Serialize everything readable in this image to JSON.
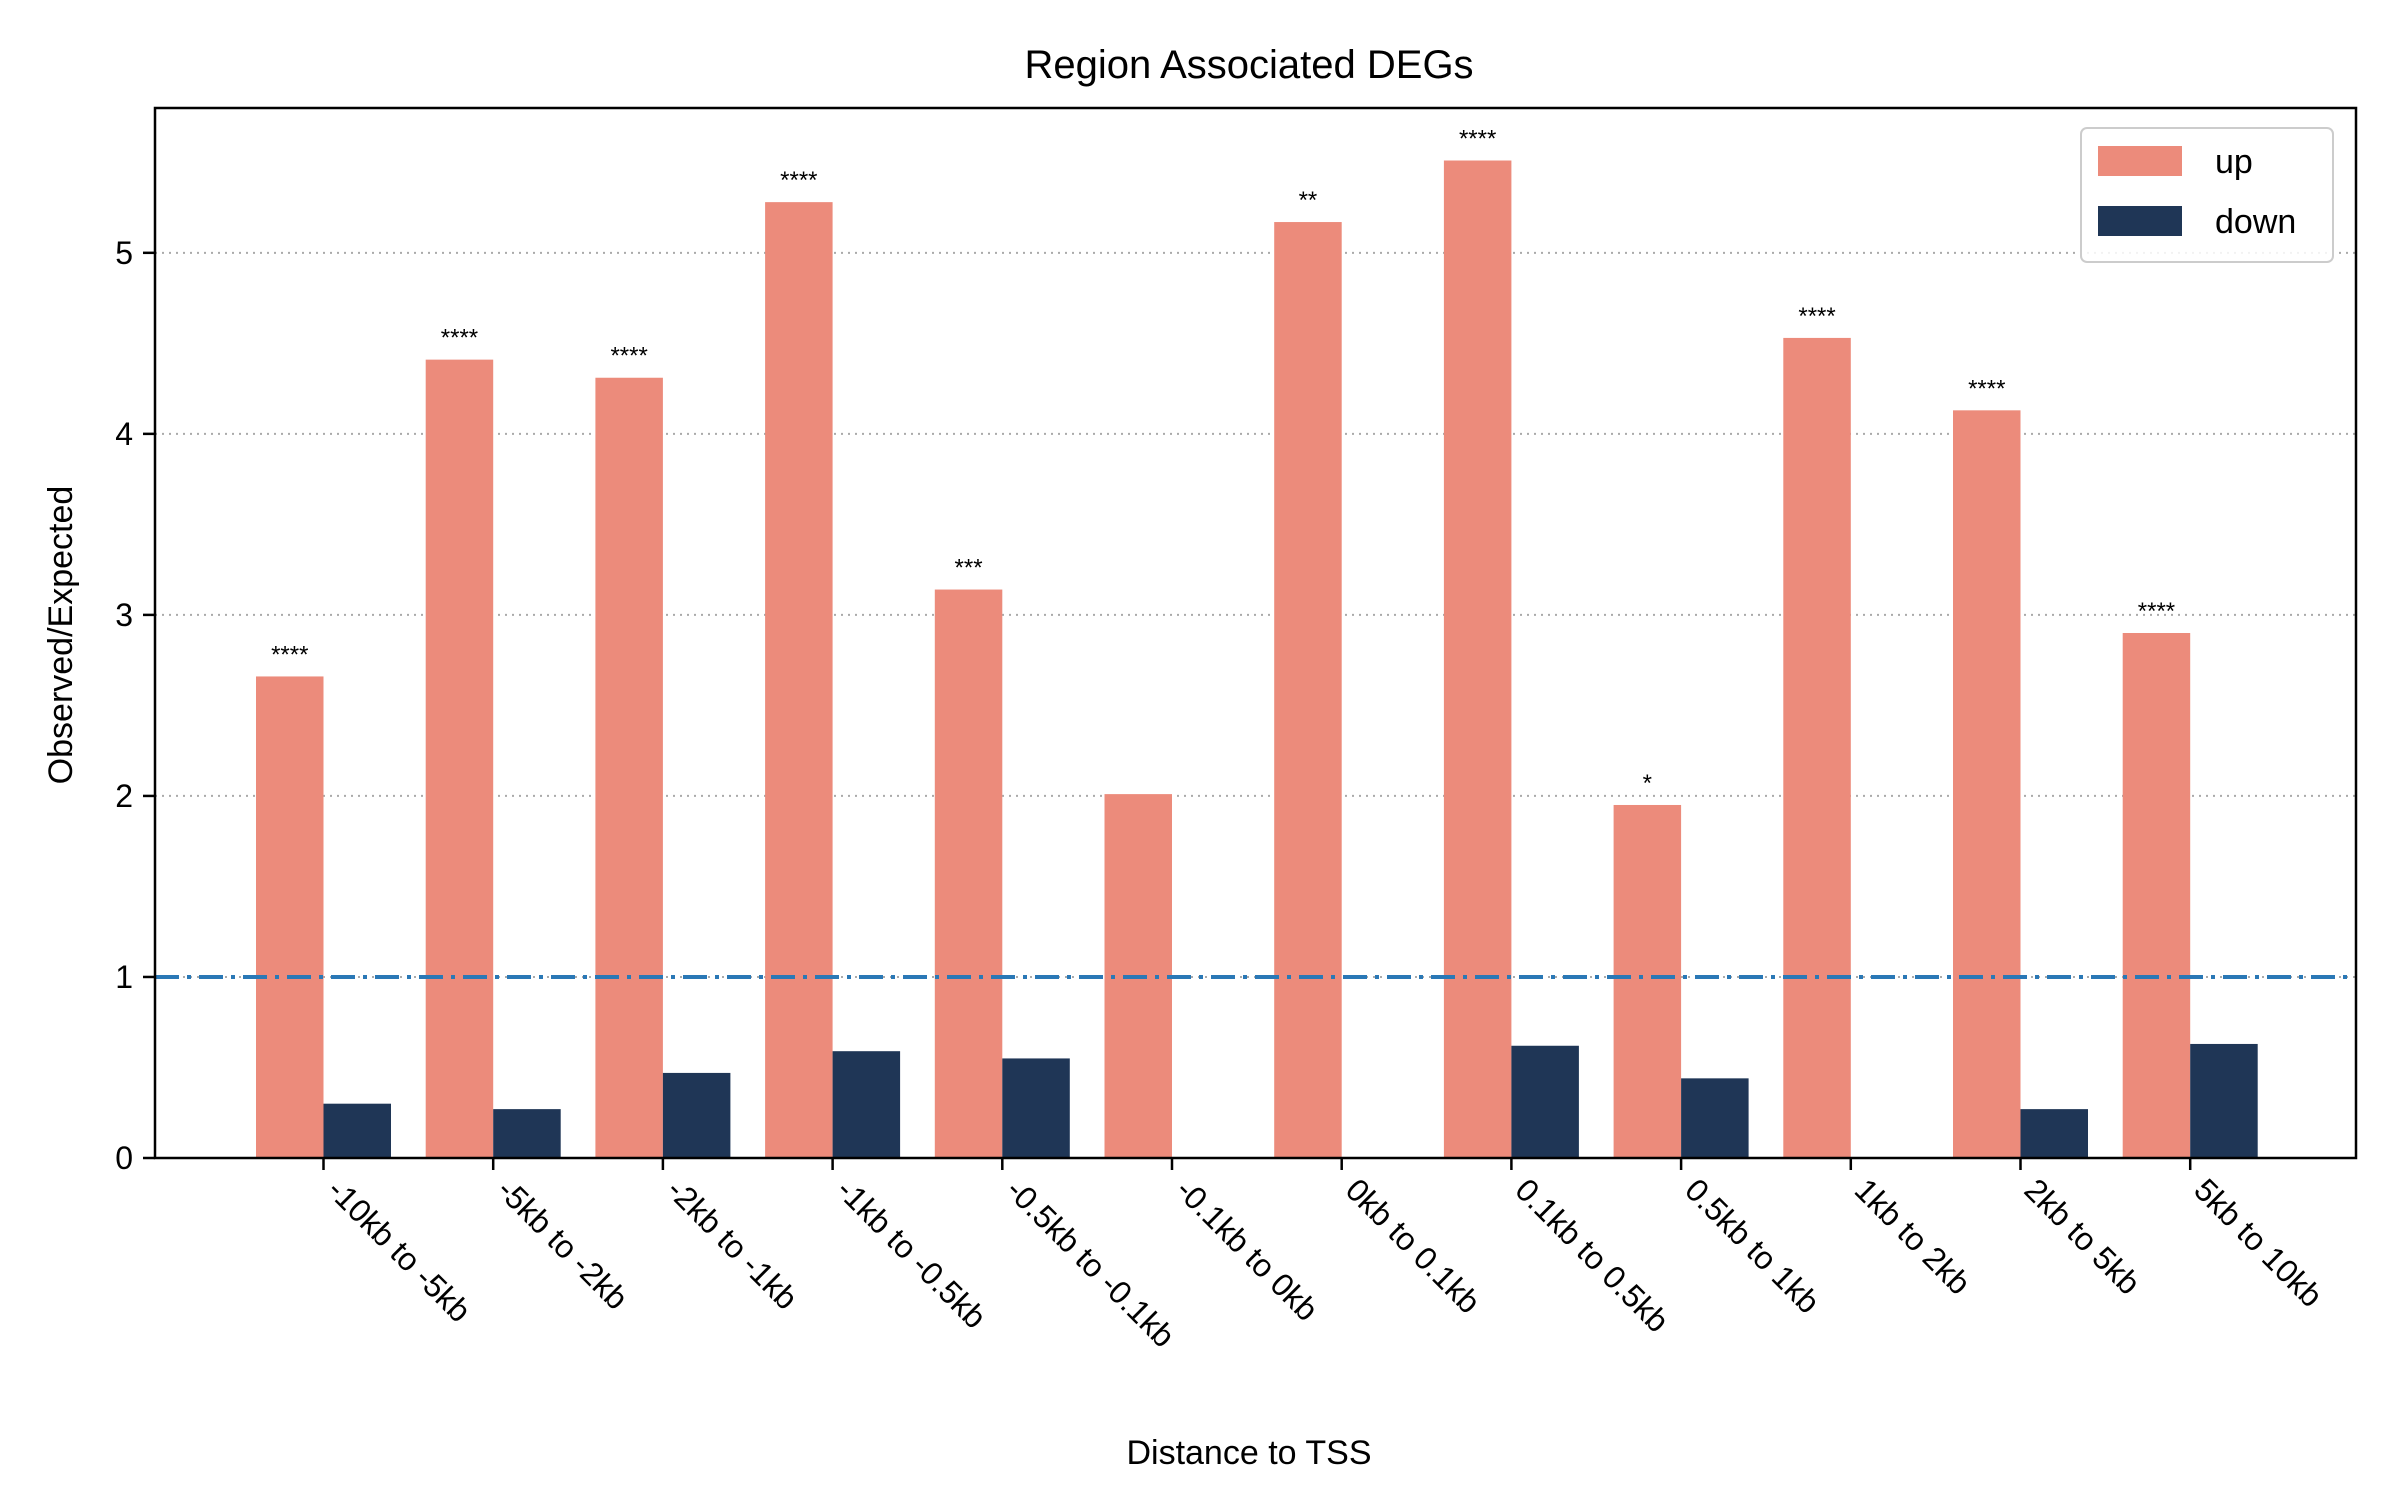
{
  "chart_data": {
    "type": "bar",
    "title": "Region Associated DEGs",
    "xlabel": "Distance to TSS",
    "ylabel": "Observed/Expected",
    "ylim": [
      0,
      5.8
    ],
    "yticks": [
      0,
      1,
      2,
      3,
      4,
      5
    ],
    "grid": "y-dotted",
    "legend_position": "top-right",
    "reference_line": 1,
    "categories": [
      "-10kb to -5kb",
      "-5kb to -2kb",
      "-2kb to -1kb",
      "-1kb to -0.5kb",
      "-0.5kb to -0.1kb",
      "-0.1kb to 0kb",
      "0kb to 0.1kb",
      "0.1kb to 0.5kb",
      "0.5kb to 1kb",
      "1kb to 2kb",
      "2kb to 5kb",
      "5kb to 10kb"
    ],
    "series": [
      {
        "name": "up",
        "color": "#EC8B7B",
        "values": [
          2.66,
          4.41,
          4.31,
          5.28,
          3.14,
          2.01,
          5.17,
          5.51,
          1.95,
          4.53,
          4.13,
          2.9
        ],
        "significance": [
          "****",
          "****",
          "****",
          "****",
          "***",
          "",
          "**",
          "****",
          "*",
          "****",
          "****",
          "****"
        ]
      },
      {
        "name": "down",
        "color": "#1F3656",
        "values": [
          0.3,
          0.27,
          0.47,
          0.59,
          0.55,
          0,
          0,
          0.62,
          0.44,
          0,
          0.27,
          0.63
        ]
      }
    ],
    "reference_line_color": "#2A78B6"
  }
}
